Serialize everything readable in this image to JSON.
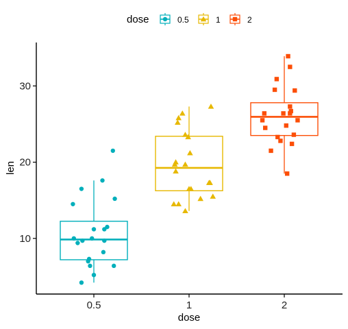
{
  "chart_data": {
    "type": "box",
    "xlabel": "dose",
    "ylabel": "len",
    "categories": [
      "0.5",
      "1",
      "2"
    ],
    "ylim": [
      2.7,
      35.7
    ],
    "yticks": [
      10,
      20,
      30
    ],
    "grid": false,
    "legend": {
      "position": "top",
      "title": "dose",
      "entries": [
        {
          "label": "0.5",
          "color": "#00AFBB",
          "shape": "circle"
        },
        {
          "label": "1",
          "color": "#E7B800",
          "shape": "triangle"
        },
        {
          "label": "2",
          "color": "#FC4E07",
          "shape": "square"
        }
      ]
    },
    "boxes": [
      {
        "category": "0.5",
        "min": 4.2,
        "q1": 7.2,
        "median": 9.85,
        "q3": 12.25,
        "max": 17.6
      },
      {
        "category": "1",
        "min": 13.6,
        "q1": 16.25,
        "median": 19.25,
        "q3": 23.4,
        "max": 27.3
      },
      {
        "category": "2",
        "min": 18.5,
        "q1": 23.5,
        "median": 25.95,
        "q3": 27.8,
        "max": 33.9
      }
    ],
    "points": [
      {
        "category": "0.5",
        "offset": -0.13,
        "y": 4.2
      },
      {
        "category": "0.5",
        "offset": 0.0,
        "y": 5.2
      },
      {
        "category": "0.5",
        "offset": -0.04,
        "y": 6.4
      },
      {
        "category": "0.5",
        "offset": 0.21,
        "y": 6.4
      },
      {
        "category": "0.5",
        "offset": -0.06,
        "y": 7.0
      },
      {
        "category": "0.5",
        "offset": -0.05,
        "y": 7.3
      },
      {
        "category": "0.5",
        "offset": 0.1,
        "y": 8.2
      },
      {
        "category": "0.5",
        "offset": -0.17,
        "y": 9.4
      },
      {
        "category": "0.5",
        "offset": -0.12,
        "y": 9.7
      },
      {
        "category": "0.5",
        "offset": 0.11,
        "y": 9.7
      },
      {
        "category": "0.5",
        "offset": -0.21,
        "y": 10.0
      },
      {
        "category": "0.5",
        "offset": -0.02,
        "y": 10.0
      },
      {
        "category": "0.5",
        "offset": 0.0,
        "y": 11.2
      },
      {
        "category": "0.5",
        "offset": 0.11,
        "y": 11.2
      },
      {
        "category": "0.5",
        "offset": 0.14,
        "y": 11.5
      },
      {
        "category": "0.5",
        "offset": -0.22,
        "y": 14.5
      },
      {
        "category": "0.5",
        "offset": 0.22,
        "y": 15.2
      },
      {
        "category": "0.5",
        "offset": -0.13,
        "y": 16.5
      },
      {
        "category": "0.5",
        "offset": 0.09,
        "y": 17.6
      },
      {
        "category": "0.5",
        "offset": 0.2,
        "y": 21.5
      },
      {
        "category": "1",
        "offset": -0.04,
        "y": 13.6
      },
      {
        "category": "1",
        "offset": -0.16,
        "y": 14.5
      },
      {
        "category": "1",
        "offset": -0.11,
        "y": 14.5
      },
      {
        "category": "1",
        "offset": 0.12,
        "y": 15.2
      },
      {
        "category": "1",
        "offset": 0.25,
        "y": 15.5
      },
      {
        "category": "1",
        "offset": 0.0,
        "y": 16.5
      },
      {
        "category": "1",
        "offset": 0.02,
        "y": 16.5
      },
      {
        "category": "1",
        "offset": 0.21,
        "y": 17.3
      },
      {
        "category": "1",
        "offset": 0.22,
        "y": 17.3
      },
      {
        "category": "1",
        "offset": -0.14,
        "y": 18.8
      },
      {
        "category": "1",
        "offset": -0.15,
        "y": 19.7
      },
      {
        "category": "1",
        "offset": -0.04,
        "y": 19.7
      },
      {
        "category": "1",
        "offset": -0.14,
        "y": 20.0
      },
      {
        "category": "1",
        "offset": 0.01,
        "y": 21.2
      },
      {
        "category": "1",
        "offset": -0.01,
        "y": 23.3
      },
      {
        "category": "1",
        "offset": -0.12,
        "y": 25.2
      },
      {
        "category": "1",
        "offset": -0.11,
        "y": 25.8
      },
      {
        "category": "1",
        "offset": -0.07,
        "y": 26.4
      },
      {
        "category": "1",
        "offset": -0.04,
        "y": 23.6
      },
      {
        "category": "1",
        "offset": 0.23,
        "y": 27.3
      },
      {
        "category": "2",
        "offset": 0.03,
        "y": 18.5
      },
      {
        "category": "2",
        "offset": -0.14,
        "y": 21.5
      },
      {
        "category": "2",
        "offset": 0.08,
        "y": 22.4
      },
      {
        "category": "2",
        "offset": -0.04,
        "y": 22.8
      },
      {
        "category": "2",
        "offset": -0.07,
        "y": 23.3
      },
      {
        "category": "2",
        "offset": 0.1,
        "y": 23.6
      },
      {
        "category": "2",
        "offset": -0.2,
        "y": 24.5
      },
      {
        "category": "2",
        "offset": 0.02,
        "y": 24.8
      },
      {
        "category": "2",
        "offset": -0.23,
        "y": 25.5
      },
      {
        "category": "2",
        "offset": 0.14,
        "y": 25.5
      },
      {
        "category": "2",
        "offset": -0.21,
        "y": 26.4
      },
      {
        "category": "2",
        "offset": -0.01,
        "y": 26.4
      },
      {
        "category": "2",
        "offset": 0.06,
        "y": 26.4
      },
      {
        "category": "2",
        "offset": 0.07,
        "y": 26.7
      },
      {
        "category": "2",
        "offset": 0.06,
        "y": 27.3
      },
      {
        "category": "2",
        "offset": 0.11,
        "y": 29.4
      },
      {
        "category": "2",
        "offset": -0.1,
        "y": 29.5
      },
      {
        "category": "2",
        "offset": -0.08,
        "y": 30.9
      },
      {
        "category": "2",
        "offset": 0.06,
        "y": 32.5
      },
      {
        "category": "2",
        "offset": 0.04,
        "y": 33.9
      }
    ]
  }
}
